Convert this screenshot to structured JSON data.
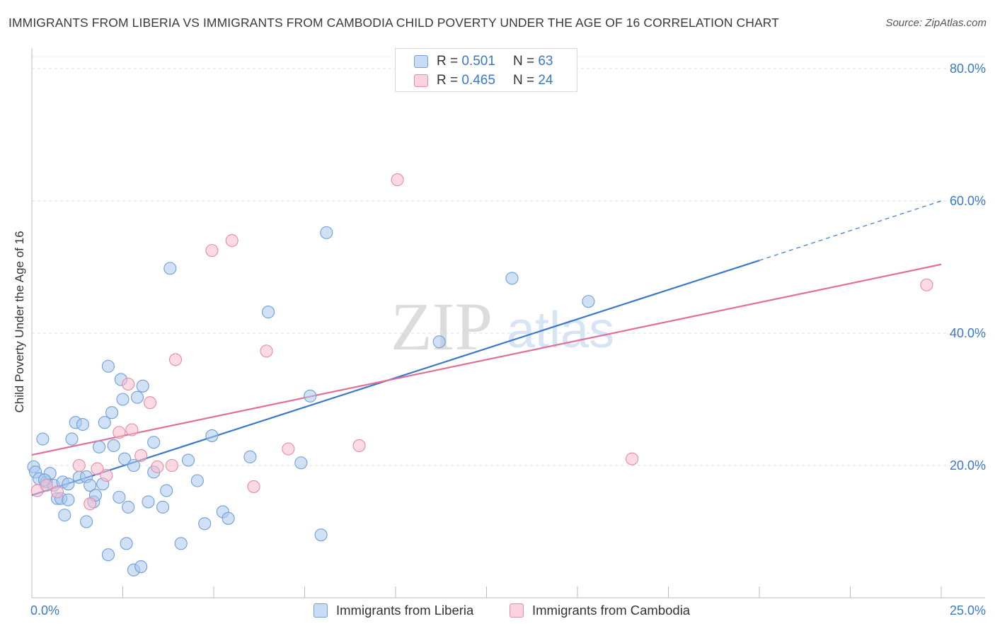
{
  "title": "IMMIGRANTS FROM LIBERIA VS IMMIGRANTS FROM CAMBODIA CHILD POVERTY UNDER THE AGE OF 16 CORRELATION CHART",
  "source": "Source: ZipAtlas.com",
  "watermark": {
    "zip": "ZIP",
    "atlas": "atlas"
  },
  "legend": [
    {
      "r_label": "R =",
      "r_value": "0.501",
      "n_label": "N =",
      "n_value": "63",
      "color": "#a9c8ef",
      "stroke": "#6f9fd8"
    },
    {
      "r_label": "R =",
      "r_value": "0.465",
      "n_label": "N =",
      "n_value": "24",
      "color": "#f7bccd",
      "stroke": "#e88aa8"
    }
  ],
  "chart_data": {
    "type": "scatter",
    "title": "IMMIGRANTS FROM LIBERIA VS IMMIGRANTS FROM CAMBODIA CHILD POVERTY UNDER THE AGE OF 16 CORRELATION CHART",
    "xlabel": "",
    "ylabel": "Child Poverty Under the Age of 16",
    "xlim": [
      0,
      25
    ],
    "ylim": [
      0,
      80
    ],
    "x_tick_labels": [
      "0.0%",
      "25.0%"
    ],
    "y_ticks": [
      20,
      40,
      60,
      80
    ],
    "y_tick_labels": [
      "20.0%",
      "40.0%",
      "60.0%",
      "80.0%"
    ],
    "grid": true,
    "legend_position": "top-center",
    "series": [
      {
        "name": "Immigrants from Liberia",
        "color": "#a9c8ef",
        "stroke": "#6f9fd8",
        "trend_color": "#3a78c9",
        "trend": {
          "x0": 0,
          "y0": 15.5,
          "x1": 20,
          "y1": 51.0,
          "dash_to_x": 25,
          "dash_to_y": 60.0
        },
        "points": [
          [
            0.05,
            19.8
          ],
          [
            0.1,
            19.0
          ],
          [
            0.2,
            18.0
          ],
          [
            0.3,
            24.0
          ],
          [
            0.4,
            17.5
          ],
          [
            0.5,
            18.8
          ],
          [
            0.6,
            17.0
          ],
          [
            0.7,
            15.0
          ],
          [
            0.8,
            15.0
          ],
          [
            0.85,
            17.5
          ],
          [
            0.9,
            12.5
          ],
          [
            1.0,
            14.8
          ],
          [
            1.0,
            17.2
          ],
          [
            1.1,
            24.0
          ],
          [
            1.2,
            26.5
          ],
          [
            1.3,
            18.2
          ],
          [
            1.4,
            26.2
          ],
          [
            1.5,
            18.3
          ],
          [
            1.5,
            11.5
          ],
          [
            1.6,
            17.0
          ],
          [
            1.7,
            14.5
          ],
          [
            1.75,
            15.5
          ],
          [
            1.85,
            22.8
          ],
          [
            1.95,
            17.2
          ],
          [
            2.0,
            26.5
          ],
          [
            2.1,
            6.5
          ],
          [
            2.1,
            35.0
          ],
          [
            2.2,
            28.0
          ],
          [
            2.25,
            23.0
          ],
          [
            2.4,
            15.2
          ],
          [
            2.45,
            33.0
          ],
          [
            2.5,
            30.0
          ],
          [
            2.55,
            21.0
          ],
          [
            2.6,
            8.2
          ],
          [
            2.65,
            13.7
          ],
          [
            2.8,
            20.0
          ],
          [
            2.8,
            4.2
          ],
          [
            2.9,
            30.3
          ],
          [
            3.0,
            4.7
          ],
          [
            3.05,
            32.0
          ],
          [
            3.2,
            14.5
          ],
          [
            3.35,
            23.5
          ],
          [
            3.35,
            19.0
          ],
          [
            3.6,
            13.7
          ],
          [
            3.7,
            16.2
          ],
          [
            3.8,
            49.8
          ],
          [
            4.1,
            8.2
          ],
          [
            4.3,
            20.8
          ],
          [
            4.55,
            17.7
          ],
          [
            4.75,
            11.2
          ],
          [
            4.95,
            24.5
          ],
          [
            5.25,
            13.0
          ],
          [
            5.4,
            12.0
          ],
          [
            6.0,
            21.3
          ],
          [
            6.5,
            43.2
          ],
          [
            7.4,
            20.4
          ],
          [
            7.65,
            30.5
          ],
          [
            7.95,
            9.5
          ],
          [
            8.1,
            55.2
          ],
          [
            11.2,
            38.7
          ],
          [
            13.2,
            48.3
          ],
          [
            15.3,
            44.8
          ],
          [
            0.35,
            17.8
          ]
        ]
      },
      {
        "name": "Immigrants from Cambodia",
        "color": "#f7bccd",
        "stroke": "#e88aa8",
        "trend_color": "#e07098",
        "trend": {
          "x0": 0,
          "y0": 21.6,
          "x1": 25,
          "y1": 50.4
        },
        "points": [
          [
            0.15,
            16.2
          ],
          [
            0.4,
            17.0
          ],
          [
            0.7,
            16.0
          ],
          [
            1.3,
            20.0
          ],
          [
            1.6,
            14.2
          ],
          [
            1.8,
            19.5
          ],
          [
            2.05,
            18.5
          ],
          [
            2.4,
            25.0
          ],
          [
            2.65,
            32.3
          ],
          [
            2.75,
            25.4
          ],
          [
            3.0,
            21.5
          ],
          [
            3.25,
            29.5
          ],
          [
            3.45,
            19.8
          ],
          [
            3.85,
            20.0
          ],
          [
            3.95,
            36.0
          ],
          [
            4.95,
            52.5
          ],
          [
            5.5,
            54.0
          ],
          [
            6.1,
            16.8
          ],
          [
            6.45,
            37.3
          ],
          [
            7.05,
            22.5
          ],
          [
            9.0,
            23.0
          ],
          [
            10.05,
            63.2
          ],
          [
            16.5,
            21.0
          ],
          [
            24.6,
            47.3
          ]
        ]
      }
    ]
  }
}
